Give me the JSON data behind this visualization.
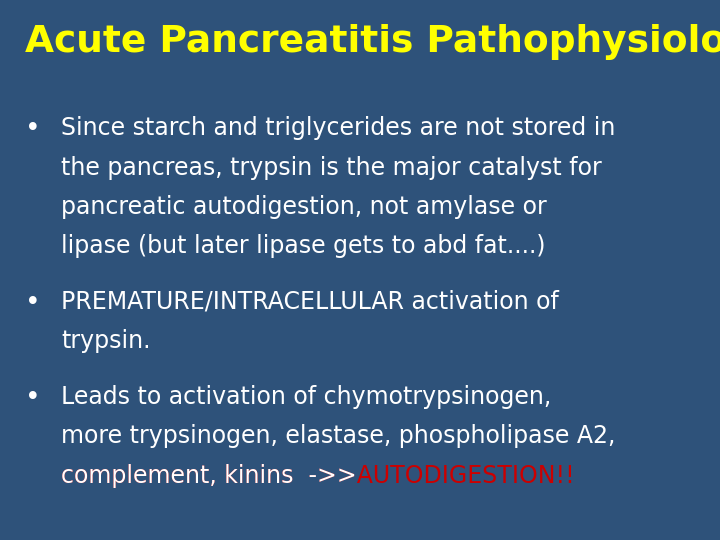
{
  "title": "Acute Pancreatitis Pathophysiology",
  "title_color": "#FFFF00",
  "background_color": "#2E527A",
  "bullet_color": "#FFFFFF",
  "bullet_symbol": "•",
  "title_fontsize": 27,
  "body_fontsize": 17,
  "figsize": [
    7.2,
    5.4
  ],
  "dpi": 100,
  "bullet1_lines": [
    "Since starch and triglycerides are not stored in",
    "the pancreas, trypsin is the major catalyst for",
    "pancreatic autodigestion, not amylase or",
    "lipase (but later lipase gets to abd fat....)"
  ],
  "bullet2_lines": [
    "PREMATURE/INTRACELLULAR activation of",
    "trypsin."
  ],
  "bullet3_lines_white": [
    "Leads to activation of chymotrypsinogen,",
    "more trypsinogen, elastase, phospholipase A2,",
    "complement, kinins  ->>"
  ],
  "bullet3_suffix": "AUTODIGESTION!!",
  "suffix_color": "#CC0000"
}
